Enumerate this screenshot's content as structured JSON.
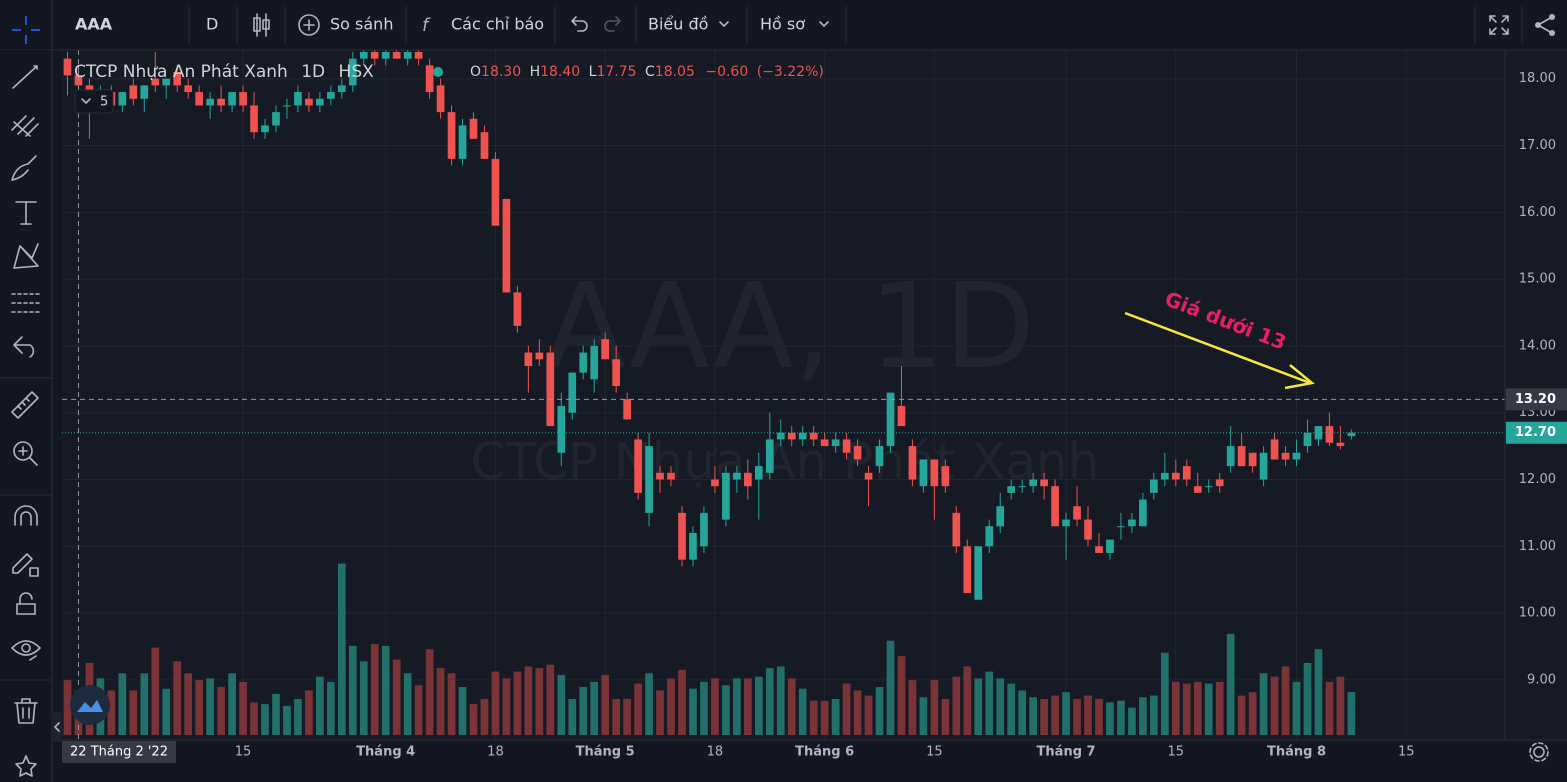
{
  "toolbar": {
    "symbol": "AAA",
    "interval": "D",
    "compare": "So sánh",
    "indicators": "Các chỉ báo",
    "chart_menu": "Biểu đồ",
    "profile_menu": "Hồ sơ"
  },
  "legend": {
    "name": "CTCP Nhựa An Phát Xanh",
    "interval": "1D",
    "exchange": "HSX",
    "open_key": "O",
    "open": "18.30",
    "high_key": "H",
    "high": "18.40",
    "low_key": "L",
    "low": "17.75",
    "close_key": "C",
    "close": "18.05",
    "change": "−0.60",
    "change_pct": "(−3.22%)",
    "collapsed_count": "5"
  },
  "watermark": {
    "symbol": "AAA, 1D",
    "name": "CTCP Nhựa An Phát Xanh"
  },
  "annotation": "Giá dưới 13",
  "chart_data": {
    "type": "candlestick",
    "open": [
      18.3,
      18.05,
      17.9,
      17.6,
      17.8,
      17.6,
      17.9,
      17.7,
      18.0,
      17.9,
      18.1,
      17.9,
      17.8,
      17.6,
      17.7,
      17.6,
      17.8,
      17.6,
      17.2,
      17.3,
      17.6,
      17.6,
      17.7,
      17.6,
      17.7,
      17.8,
      17.9,
      18.3,
      18.4,
      18.3,
      18.4,
      18.3,
      18.4,
      18.2,
      17.9,
      17.5,
      16.8,
      17.4,
      17.2,
      16.8,
      16.2,
      14.8,
      13.9,
      13.9,
      13.9,
      12.4,
      13.0,
      13.6,
      13.5,
      14.1,
      13.8,
      13.2,
      12.6,
      11.5,
      12.1,
      12.1,
      11.5,
      10.8,
      11.0,
      12.0,
      11.4,
      12.0,
      12.1,
      12.0,
      12.1,
      12.6,
      12.7,
      12.6,
      12.7,
      12.6,
      12.5,
      12.6,
      12.5,
      12.1,
      12.2,
      12.5,
      13.1,
      12.5,
      11.9,
      12.3,
      12.2,
      11.5,
      11.0,
      10.2,
      11.0,
      11.3,
      11.8,
      11.9,
      11.9,
      12.0,
      11.9,
      11.3,
      11.6,
      11.4,
      11.0,
      10.9,
      11.3,
      11.3,
      11.3,
      11.8,
      12.0,
      12.1,
      12.2,
      11.9,
      11.9,
      12.0,
      12.2,
      12.5,
      12.4,
      12.0,
      12.6,
      12.4,
      12.3,
      12.5,
      12.6,
      12.8,
      12.55,
      12.65
    ],
    "high": [
      18.4,
      18.2,
      18.0,
      17.9,
      17.9,
      17.8,
      18.0,
      17.9,
      18.4,
      18.0,
      18.2,
      18.0,
      17.9,
      17.8,
      17.9,
      17.8,
      17.9,
      17.8,
      17.4,
      17.6,
      17.7,
      17.9,
      17.8,
      17.8,
      17.9,
      18.0,
      18.4,
      18.5,
      18.5,
      18.5,
      18.5,
      18.5,
      18.5,
      18.3,
      18.0,
      17.6,
      17.4,
      17.5,
      17.3,
      16.9,
      16.2,
      14.9,
      14.0,
      14.1,
      14.0,
      13.3,
      13.6,
      14.0,
      14.1,
      14.2,
      14.0,
      13.3,
      12.7,
      12.7,
      12.2,
      12.2,
      11.6,
      11.3,
      11.6,
      12.2,
      12.2,
      12.2,
      12.3,
      12.4,
      13.0,
      12.9,
      12.8,
      12.8,
      12.8,
      12.7,
      12.7,
      12.7,
      12.6,
      12.2,
      12.6,
      13.3,
      13.7,
      12.6,
      12.3,
      12.3,
      12.3,
      11.6,
      11.1,
      11.0,
      11.4,
      11.8,
      12.0,
      12.0,
      12.1,
      12.1,
      12.0,
      11.5,
      11.9,
      11.6,
      11.2,
      11.1,
      11.5,
      11.5,
      11.8,
      12.1,
      12.4,
      12.3,
      12.3,
      12.1,
      12.0,
      12.1,
      12.8,
      12.7,
      12.4,
      12.5,
      12.7,
      12.5,
      12.6,
      12.9,
      12.8,
      13.0,
      12.8,
      12.75
    ],
    "low": [
      17.75,
      17.8,
      17.1,
      17.5,
      17.5,
      17.5,
      17.6,
      17.5,
      17.8,
      17.7,
      17.8,
      17.7,
      17.6,
      17.4,
      17.5,
      17.5,
      17.5,
      17.1,
      17.1,
      17.2,
      17.4,
      17.5,
      17.5,
      17.5,
      17.6,
      17.7,
      17.8,
      18.2,
      18.2,
      18.2,
      18.3,
      18.2,
      18.2,
      17.7,
      17.4,
      16.7,
      16.7,
      17.1,
      16.8,
      15.8,
      14.8,
      14.2,
      13.3,
      13.7,
      12.8,
      12.2,
      12.9,
      13.5,
      13.3,
      13.8,
      13.3,
      12.9,
      11.7,
      11.3,
      11.8,
      11.9,
      10.7,
      10.7,
      10.9,
      11.8,
      11.3,
      11.8,
      11.7,
      11.4,
      12.0,
      12.5,
      12.5,
      12.5,
      12.5,
      12.5,
      12.4,
      12.3,
      12.2,
      11.6,
      12.1,
      12.4,
      12.8,
      11.9,
      11.8,
      11.4,
      11.8,
      10.9,
      10.3,
      10.2,
      10.9,
      11.2,
      11.7,
      11.8,
      11.8,
      11.7,
      11.3,
      10.8,
      11.3,
      11.0,
      10.9,
      10.8,
      11.1,
      11.2,
      11.3,
      11.7,
      11.9,
      11.9,
      11.9,
      11.8,
      11.8,
      11.8,
      12.1,
      12.2,
      12.1,
      11.9,
      12.3,
      12.2,
      12.2,
      12.4,
      12.5,
      12.5,
      12.45,
      12.6
    ],
    "close": [
      18.05,
      17.9,
      17.6,
      17.8,
      17.6,
      17.8,
      17.7,
      17.9,
      17.9,
      18.0,
      17.9,
      17.8,
      17.6,
      17.7,
      17.6,
      17.8,
      17.6,
      17.2,
      17.3,
      17.5,
      17.6,
      17.8,
      17.6,
      17.7,
      17.8,
      17.9,
      18.3,
      18.4,
      18.3,
      18.4,
      18.3,
      18.4,
      18.3,
      17.8,
      17.5,
      16.8,
      17.3,
      17.1,
      16.8,
      15.8,
      14.8,
      14.3,
      13.7,
      13.8,
      12.8,
      13.1,
      13.6,
      13.9,
      14.0,
      13.8,
      13.4,
      12.9,
      11.8,
      12.5,
      12.0,
      12.0,
      10.8,
      11.2,
      11.5,
      11.9,
      12.1,
      12.1,
      11.9,
      12.2,
      12.6,
      12.7,
      12.6,
      12.7,
      12.6,
      12.5,
      12.6,
      12.4,
      12.3,
      12.0,
      12.5,
      13.3,
      12.8,
      12.0,
      12.3,
      11.9,
      11.9,
      11.0,
      10.3,
      11.0,
      11.3,
      11.6,
      11.9,
      11.9,
      12.0,
      11.9,
      11.3,
      11.4,
      11.4,
      11.1,
      10.9,
      11.1,
      11.3,
      11.4,
      11.7,
      12.0,
      12.1,
      12.0,
      12.0,
      11.8,
      11.9,
      11.9,
      12.5,
      12.2,
      12.2,
      12.4,
      12.3,
      12.3,
      12.4,
      12.7,
      12.8,
      12.55,
      12.5,
      12.7
    ],
    "volume": [
      3.2,
      2.6,
      4.2,
      3.3,
      2.6,
      3.6,
      2.6,
      3.6,
      5.1,
      2.7,
      4.3,
      3.6,
      3.2,
      3.3,
      2.8,
      3.6,
      3.1,
      1.9,
      1.8,
      2.4,
      1.7,
      2.1,
      2.6,
      3.4,
      3.1,
      10.0,
      5.2,
      4.3,
      5.3,
      5.2,
      4.4,
      3.6,
      2.9,
      5.0,
      3.9,
      3.6,
      2.8,
      1.8,
      2.1,
      3.7,
      3.3,
      3.7,
      4.0,
      3.9,
      4.1,
      3.5,
      2.1,
      2.8,
      3.1,
      3.5,
      2.1,
      2.1,
      3.0,
      3.6,
      2.6,
      3.3,
      3.8,
      2.7,
      3.1,
      3.3,
      2.9,
      3.3,
      3.3,
      3.4,
      3.9,
      4.0,
      3.3,
      2.7,
      2.0,
      2.0,
      2.1,
      3.0,
      2.6,
      2.3,
      2.8,
      5.5,
      4.6,
      3.2,
      2.2,
      3.2,
      2.1,
      3.4,
      4.0,
      3.3,
      3.7,
      3.3,
      3.0,
      2.6,
      2.2,
      2.1,
      2.3,
      2.5,
      2.1,
      2.3,
      2.1,
      1.9,
      2.0,
      1.6,
      2.2,
      2.3,
      4.8,
      3.1,
      3.0,
      3.1,
      3.0,
      3.1,
      5.9,
      2.3,
      2.5,
      3.6,
      3.4,
      4.0,
      3.1,
      4.2,
      5.0,
      3.1,
      3.4,
      2.5
    ],
    "up_color": "#26a69a",
    "down_color": "#ef5350",
    "volume_up_color": "#22706a",
    "volume_down_color": "#7a3438",
    "xlim": [
      -0.5,
      131
    ],
    "ylim": [
      8.1,
      18.43
    ],
    "vlim": [
      0,
      10.5
    ],
    "xticks": [
      {
        "value": 16,
        "label": "15"
      },
      {
        "value": 29,
        "label": "Tháng 4"
      },
      {
        "value": 39,
        "label": "18"
      },
      {
        "value": 49,
        "label": "Tháng 5"
      },
      {
        "value": 59,
        "label": "18"
      },
      {
        "value": 69,
        "label": "Tháng 6"
      },
      {
        "value": 79,
        "label": "15"
      },
      {
        "value": 91,
        "label": "Tháng 7"
      },
      {
        "value": 101,
        "label": "15"
      },
      {
        "value": 112,
        "label": "Tháng 8"
      },
      {
        "value": 122,
        "label": "15"
      }
    ],
    "yticks": [
      {
        "value": 9,
        "label": "9.00"
      },
      {
        "value": 10,
        "label": "10.00"
      },
      {
        "value": 11,
        "label": "11.00"
      },
      {
        "value": 12,
        "label": "12.00"
      },
      {
        "value": 13,
        "label": "13.00"
      },
      {
        "value": 14,
        "label": "14.00"
      },
      {
        "value": 15,
        "label": "15.00"
      },
      {
        "value": 16,
        "label": "16.00"
      },
      {
        "value": 17,
        "label": "17.00"
      },
      {
        "value": 18,
        "label": "18.00"
      }
    ],
    "grid": true,
    "crosshair": {
      "x": {
        "value": 1,
        "label": "22 Tháng 2 '22"
      },
      "y": {
        "value": 13.2,
        "label": "13.20"
      }
    },
    "last_price": {
      "value": 12.7,
      "label": "12.70"
    }
  }
}
